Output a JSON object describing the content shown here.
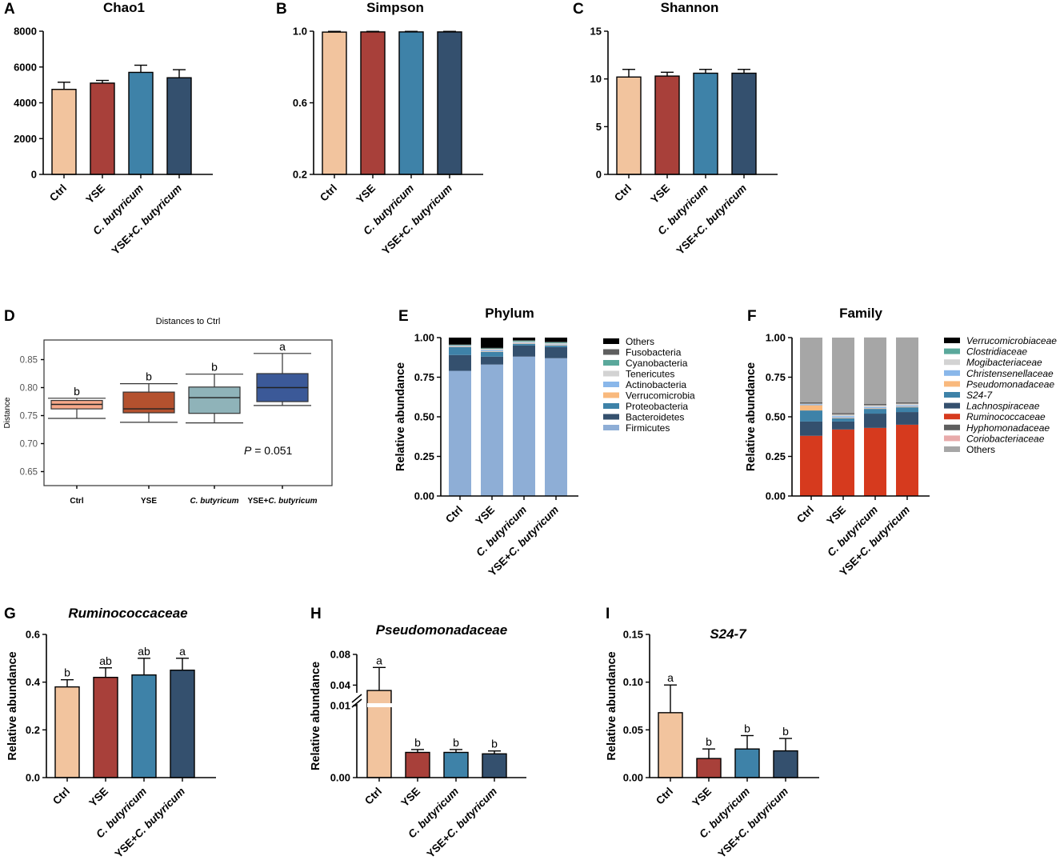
{
  "colors": {
    "ctrl": "#f2c49e",
    "yse": "#a8403a",
    "cbut": "#3e82a8",
    "combo": "#34506e"
  },
  "panel_labels": [
    "A",
    "B",
    "C",
    "D",
    "E",
    "F",
    "G",
    "H",
    "I"
  ],
  "chart_data": [
    {
      "id": "A",
      "type": "bar",
      "title": "Chao1",
      "categories": [
        "Ctrl",
        "YSE",
        "C. butyricum",
        "YSE+C. butyricum"
      ],
      "values": [
        4750,
        5100,
        5700,
        5400
      ],
      "errors": [
        400,
        150,
        400,
        450
      ],
      "ylim": [
        0,
        8000
      ],
      "yticks": [
        0,
        2000,
        4000,
        6000,
        8000
      ],
      "ytick_labels": [
        "0",
        "2000",
        "4000",
        "6000",
        "8000"
      ],
      "ylabel": "",
      "xlabel": "",
      "letters": []
    },
    {
      "id": "B",
      "type": "bar",
      "title": "Simpson",
      "categories": [
        "Ctrl",
        "YSE",
        "C. butyricum",
        "YSE+C. butyricum"
      ],
      "values": [
        0.995,
        0.996,
        0.996,
        0.996
      ],
      "errors": [
        0.004,
        0.003,
        0.003,
        0.003
      ],
      "ylim": [
        0.2,
        1.0
      ],
      "yticks": [
        0.2,
        0.6,
        1.0
      ],
      "ytick_labels": [
        "0.2",
        "0.6",
        "1.0"
      ],
      "ylabel": "",
      "xlabel": "",
      "letters": []
    },
    {
      "id": "C",
      "type": "bar",
      "title": "Shannon",
      "categories": [
        "Ctrl",
        "YSE",
        "C. butyricum",
        "YSE+C. butyricum"
      ],
      "values": [
        10.2,
        10.3,
        10.6,
        10.6
      ],
      "errors": [
        0.8,
        0.4,
        0.4,
        0.4
      ],
      "ylim": [
        0,
        15
      ],
      "yticks": [
        0,
        5,
        10,
        15
      ],
      "ytick_labels": [
        "0",
        "5",
        "10",
        "15"
      ],
      "ylabel": "",
      "xlabel": "",
      "letters": []
    },
    {
      "id": "D",
      "type": "box",
      "title": "Distances to Ctrl",
      "categories": [
        "Ctrl",
        "YSE",
        "C. butyricum",
        "YSE+C. butyricum"
      ],
      "boxes": [
        {
          "whisker_low": 0.745,
          "q1": 0.762,
          "median": 0.77,
          "q3": 0.777,
          "whisker_high": 0.781,
          "fill": "#f7a98a",
          "letter": "b"
        },
        {
          "whisker_low": 0.738,
          "q1": 0.755,
          "median": 0.762,
          "q3": 0.792,
          "whisker_high": 0.807,
          "fill": "#b4512e",
          "letter": "b"
        },
        {
          "whisker_low": 0.737,
          "q1": 0.754,
          "median": 0.782,
          "q3": 0.801,
          "whisker_high": 0.824,
          "fill": "#8fb3b9",
          "letter": "b"
        },
        {
          "whisker_low": 0.768,
          "q1": 0.775,
          "median": 0.8,
          "q3": 0.825,
          "whisker_high": 0.861,
          "fill": "#3b5998",
          "letter": "a"
        }
      ],
      "ylim": [
        0.625,
        0.885
      ],
      "yticks": [
        0.65,
        0.7,
        0.75,
        0.8,
        0.85
      ],
      "ytick_labels": [
        "0.65",
        "0.70",
        "0.75",
        "0.80",
        "0.85"
      ],
      "ylabel": "Distance",
      "annotation": "P = 0.051"
    },
    {
      "id": "E",
      "type": "stacked_bar",
      "title": "Phylum",
      "categories": [
        "Ctrl",
        "YSE",
        "C. butyricum",
        "YSE+C. butyricum"
      ],
      "ylim": [
        0,
        1.0
      ],
      "yticks": [
        0,
        0.25,
        0.5,
        0.75,
        1.0
      ],
      "ytick_labels": [
        "0.00",
        "0.25",
        "0.50",
        "0.75",
        "1.00"
      ],
      "ylabel": "Relative abundance",
      "series": [
        {
          "name": "Firmicutes",
          "color": "#8eaed6",
          "values": [
            0.79,
            0.83,
            0.88,
            0.87
          ]
        },
        {
          "name": "Bacteroidetes",
          "color": "#34506e",
          "values": [
            0.1,
            0.05,
            0.07,
            0.07
          ]
        },
        {
          "name": "Proteobacteria",
          "color": "#3e82a8",
          "values": [
            0.05,
            0.03,
            0.01,
            0.01
          ]
        },
        {
          "name": "Verrucomicrobia",
          "color": "#f9b97d",
          "values": [
            0.003,
            0.003,
            0.003,
            0.003
          ]
        },
        {
          "name": "Actinobacteria",
          "color": "#89b7ea",
          "values": [
            0.004,
            0.008,
            0.004,
            0.004
          ]
        },
        {
          "name": "Tenericutes",
          "color": "#d3d3d3",
          "values": [
            0.004,
            0.008,
            0.008,
            0.008
          ]
        },
        {
          "name": "Cyanobacteria",
          "color": "#5aa89b",
          "values": [
            0.004,
            0.004,
            0.006,
            0.006
          ]
        },
        {
          "name": "Fusobacteria",
          "color": "#5f5f5f",
          "values": [
            0.002,
            0.002,
            0.002,
            0.002
          ]
        },
        {
          "name": "Others",
          "color": "#000000",
          "values": [
            0.043,
            0.064,
            0.017,
            0.027
          ]
        }
      ],
      "legend_order": [
        "Others",
        "Fusobacteria",
        "Cyanobacteria",
        "Tenericutes",
        "Actinobacteria",
        "Verrucomicrobia",
        "Proteobacteria",
        "Bacteroidetes",
        "Firmicutes"
      ]
    },
    {
      "id": "F",
      "type": "stacked_bar",
      "title": "Family",
      "categories": [
        "Ctrl",
        "YSE",
        "C. butyricum",
        "YSE+C. butyricum"
      ],
      "ylim": [
        0,
        1.0
      ],
      "yticks": [
        0,
        0.25,
        0.5,
        0.75,
        1.0
      ],
      "ytick_labels": [
        "0.00",
        "0.25",
        "0.50",
        "0.75",
        "1.00"
      ],
      "ylabel": "Relative abundance",
      "series": [
        {
          "name": "Ruminococcaceae",
          "color": "#d63a1e",
          "values": [
            0.38,
            0.42,
            0.43,
            0.45
          ]
        },
        {
          "name": "Lachnospiraceae",
          "color": "#34506e",
          "values": [
            0.09,
            0.05,
            0.09,
            0.08
          ]
        },
        {
          "name": "S24-7",
          "color": "#3e82a8",
          "values": [
            0.07,
            0.02,
            0.03,
            0.03
          ]
        },
        {
          "name": "Pseudomonadaceae",
          "color": "#f9b97d",
          "values": [
            0.033,
            0.004,
            0.004,
            0.004
          ]
        },
        {
          "name": "Christensenellaceae",
          "color": "#89b7ea",
          "values": [
            0.007,
            0.01,
            0.008,
            0.008
          ]
        },
        {
          "name": "Mogibacteriaceae",
          "color": "#d3d3d3",
          "values": [
            0.002,
            0.01,
            0.01,
            0.01
          ]
        },
        {
          "name": "Clostridiaceae",
          "color": "#5aa89b",
          "values": [
            0.002,
            0.002,
            0.002,
            0.002
          ]
        },
        {
          "name": "Coriobacteriaceae",
          "color": "#e8aaaa",
          "values": [
            0.001,
            0.001,
            0.001,
            0.001
          ]
        },
        {
          "name": "Hyphomonadaceae",
          "color": "#5f5f5f",
          "values": [
            0.002,
            0.002,
            0.002,
            0.002
          ]
        },
        {
          "name": "Verrucomicrobiaceae",
          "color": "#000000",
          "values": [
            0.003,
            0.003,
            0.003,
            0.003
          ]
        },
        {
          "name": "Others",
          "color": "#a6a6a6",
          "values": [
            0.41,
            0.478,
            0.421,
            0.411
          ]
        }
      ],
      "legend_order": [
        "Verrucomicrobiaceae",
        "Clostridiaceae",
        "Mogibacteriaceae",
        "Christensenellaceae",
        "Pseudomonadaceae",
        "S24-7",
        "Lachnospiraceae",
        "Ruminococcaceae",
        "Hyphomonadaceae",
        "Coriobacteriaceae",
        "Others"
      ]
    },
    {
      "id": "G",
      "type": "bar",
      "title": "Ruminococcaceae",
      "categories": [
        "Ctrl",
        "YSE",
        "C. butyricum",
        "YSE+C. butyricum"
      ],
      "values": [
        0.38,
        0.42,
        0.43,
        0.45
      ],
      "errors": [
        0.03,
        0.04,
        0.07,
        0.05
      ],
      "ylim": [
        0,
        0.6
      ],
      "yticks": [
        0,
        0.2,
        0.4,
        0.6
      ],
      "ytick_labels": [
        "0.0",
        "0.2",
        "0.4",
        "0.6"
      ],
      "ylabel": "Relative abundance",
      "letters": [
        "b",
        "ab",
        "ab",
        "a"
      ]
    },
    {
      "id": "H",
      "type": "bar",
      "title": "Pseudomonadaceae",
      "categories": [
        "Ctrl",
        "YSE",
        "C. butyricum",
        "YSE+C. butyricum"
      ],
      "values": [
        0.033,
        0.0035,
        0.0035,
        0.0033
      ],
      "errors": [
        0.03,
        0.0004,
        0.0004,
        0.0004
      ],
      "ylim": [
        0,
        0.08
      ],
      "yticks": [
        0,
        0.01,
        0.04,
        0.08
      ],
      "ytick_labels": [
        "0.00",
        "0.01",
        "0.04",
        "0.08"
      ],
      "axis_break": [
        0.01,
        0.03
      ],
      "ylabel": "Relative abundance",
      "letters": [
        "a",
        "b",
        "b",
        "b"
      ]
    },
    {
      "id": "I",
      "type": "bar",
      "title": "S24-7",
      "categories": [
        "Ctrl",
        "YSE",
        "C. butyricum",
        "YSE+C. butyricum"
      ],
      "values": [
        0.068,
        0.02,
        0.03,
        0.028
      ],
      "errors": [
        0.029,
        0.01,
        0.014,
        0.013
      ],
      "ylim": [
        0,
        0.15
      ],
      "yticks": [
        0,
        0.05,
        0.1,
        0.15
      ],
      "ytick_labels": [
        "0.00",
        "0.05",
        "0.10",
        "0.15"
      ],
      "ylabel": "Relative abundance",
      "letters": [
        "a",
        "b",
        "b",
        "b"
      ]
    }
  ]
}
